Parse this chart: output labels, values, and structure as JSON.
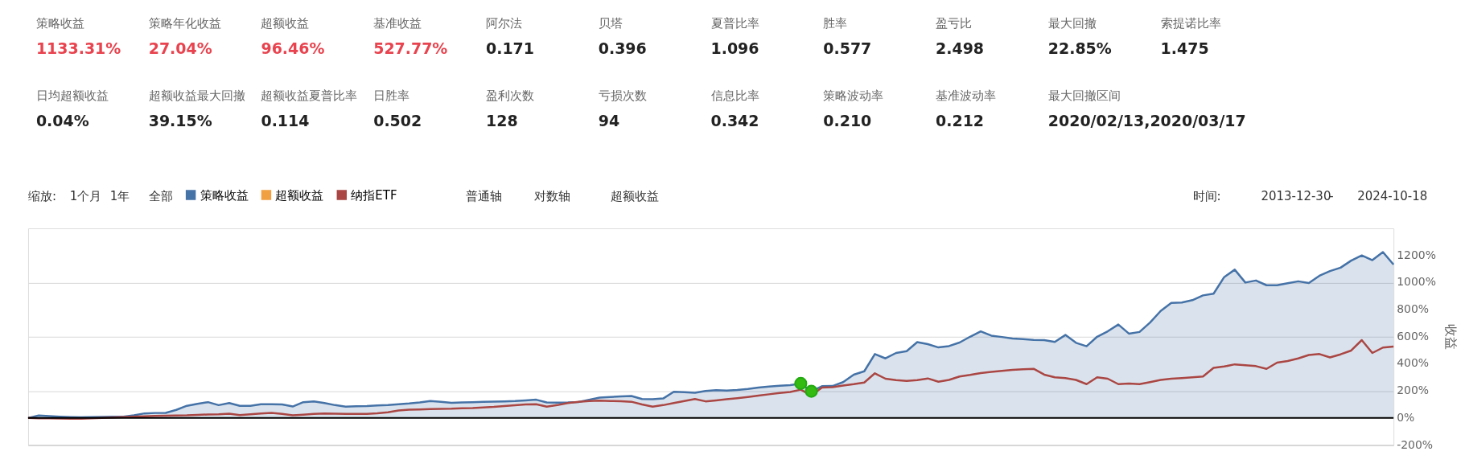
{
  "chart_data": [
    {
      "type": "other",
      "categories": [
        "策略收益",
        "策略年化收益",
        "超额收益",
        "基准收益",
        "阿尔法",
        "贝塔",
        "夏普比率",
        "胜率",
        "盈亏比",
        "最大回撤",
        "索提诺比率",
        "日均超额收益",
        "超额收益最大回撤",
        "超额收益夏普比率",
        "日胜率",
        "盈利次数",
        "亏损次数",
        "信息比率",
        "策略波动率",
        "基准波动率",
        "最大回撤区间"
      ],
      "value_labels": [
        "1133.31%",
        "27.04%",
        "96.46%",
        "527.77%",
        "0.171",
        "0.396",
        "1.096",
        "0.577",
        "2.498",
        "22.85%",
        "1.475",
        "0.04%",
        "39.15%",
        "0.114",
        "0.502",
        "128",
        "94",
        "0.342",
        "0.210",
        "0.212",
        "2020/02/13,2020/03/17"
      ],
      "colors": [
        "#e8434e",
        "#e8434e",
        "#e8434e",
        "#e8434e",
        "#222222",
        "#222222",
        "#222222",
        "#222222",
        "#222222",
        "#222222",
        "#222222",
        "#222222",
        "#222222",
        "#222222",
        "#222222",
        "#222222",
        "#222222",
        "#222222",
        "#222222",
        "#222222",
        "#222222"
      ]
    },
    {
      "type": "line",
      "ylabel": "收益",
      "annotations": [
        "缩放:",
        "1个月",
        "1年",
        "全部",
        "普通轴",
        "对数轴",
        "超额收益",
        "时间:",
        "2013-12-30",
        "-",
        "2024-10-18"
      ],
      "categories": [
        null,
        null,
        null,
        null,
        null,
        null,
        null,
        null,
        null,
        null,
        null,
        null,
        null,
        null,
        null,
        null,
        null,
        null,
        null,
        null,
        null,
        null,
        null,
        null,
        null,
        null,
        null,
        null,
        null,
        null,
        null,
        null,
        null,
        null,
        null,
        null,
        null,
        null,
        null,
        null,
        null,
        null,
        null,
        null,
        null,
        null,
        null,
        null,
        null,
        null,
        null,
        null,
        null,
        null,
        null,
        null,
        null,
        null,
        null,
        null,
        null,
        null,
        null,
        null,
        null,
        null,
        null,
        null,
        null,
        null,
        null,
        null,
        null,
        null,
        null,
        null,
        null,
        null,
        null,
        null,
        null,
        null,
        null,
        null,
        null,
        null,
        null,
        null,
        null,
        null,
        null,
        null,
        null,
        null,
        null,
        null,
        null,
        null,
        null,
        null,
        null,
        null,
        null,
        null,
        null,
        null,
        null,
        null,
        null,
        null,
        null,
        null,
        null,
        null,
        null,
        null,
        null,
        null,
        null,
        null,
        null,
        null,
        null,
        null,
        null,
        null,
        null,
        null,
        null,
        null
      ],
      "ylim": [
        -200,
        1400
      ],
      "yticks": [
        {
          "value": -200,
          "label": "-200%"
        },
        {
          "value": 0,
          "label": "0%"
        },
        {
          "value": 200,
          "label": "200%"
        },
        {
          "value": 400,
          "label": "400%"
        },
        {
          "value": 600,
          "label": "600%"
        },
        {
          "value": 800,
          "label": "800%"
        },
        {
          "value": 1000,
          "label": "1000%"
        },
        {
          "value": 1200,
          "label": "1200%"
        }
      ],
      "tick_labels": "y",
      "grid": "y",
      "legend": "top left",
      "ref_lines": [
        {
          "axis": "y",
          "value": 0,
          "color": "#000000"
        }
      ],
      "series": [
        {
          "name": "策略收益",
          "type": "area",
          "color": "#4572a7",
          "values": [
            0,
            18,
            14,
            10,
            7,
            5,
            6,
            8,
            9,
            10,
            20,
            34,
            37,
            38,
            60,
            90,
            105,
            117,
            95,
            110,
            90,
            90,
            102,
            102,
            100,
            85,
            117,
            122,
            110,
            95,
            84,
            86,
            88,
            92,
            96,
            102,
            107,
            115,
            125,
            120,
            112,
            115,
            117,
            119,
            121,
            123,
            125,
            130,
            135,
            115,
            114,
            115,
            118,
            135,
            150,
            155,
            160,
            162,
            140,
            138,
            144,
            194,
            190,
            186,
            200,
            205,
            203,
            207,
            215,
            225,
            232,
            238,
            243,
            255,
            197,
            235,
            236,
            265,
            320,
            345,
            472,
            440,
            480,
            493,
            560,
            545,
            521,
            531,
            557,
            600,
            640,
            608,
            598,
            587,
            582,
            577,
            575,
            562,
            613,
            555,
            530,
            600,
            640,
            690,
            623,
            635,
            705,
            790,
            850,
            852,
            870,
            905,
            918,
            1040,
            1095,
            1000,
            1015,
            980,
            980,
            995,
            1009,
            996,
            1050,
            1085,
            1110,
            1162,
            1200,
            1165,
            1225,
            1133
          ]
        },
        {
          "name": "超额收益",
          "type": "line",
          "color": "#f0a040",
          "values": [
            null,
            null,
            null,
            null,
            null,
            null,
            null,
            null,
            null,
            null,
            null,
            null,
            null,
            null,
            null,
            null,
            null,
            null,
            null,
            null,
            null,
            null,
            null,
            null,
            null,
            null,
            null,
            null,
            null,
            null,
            null,
            null,
            null,
            null,
            null,
            null,
            null,
            null,
            null,
            null,
            null,
            null,
            null,
            null,
            null,
            null,
            null,
            null,
            null,
            null,
            null,
            null,
            null,
            null,
            null,
            null,
            null,
            null,
            null,
            null,
            null,
            null,
            null,
            null,
            null,
            null,
            null,
            null,
            null,
            null,
            null,
            null,
            null,
            null,
            null,
            null,
            null,
            null,
            null,
            null,
            null,
            null,
            null,
            null,
            null,
            null,
            null,
            null,
            null,
            null,
            null,
            null,
            null,
            null,
            null,
            null,
            null,
            null,
            null,
            null,
            null,
            null,
            null,
            null,
            null,
            null,
            null,
            null,
            null,
            null,
            null,
            null,
            null,
            null,
            null,
            null,
            null,
            null,
            null,
            null,
            null,
            null,
            null,
            null,
            null,
            null,
            null,
            null,
            null,
            null
          ]
        },
        {
          "name": "纳指ETF",
          "type": "line",
          "color": "#aa4643",
          "values": [
            0,
            -2,
            -3,
            -4,
            -5,
            -5,
            -3,
            0,
            3,
            6,
            10,
            13,
            15,
            17,
            19,
            20,
            23,
            26,
            28,
            32,
            22,
            28,
            33,
            38,
            30,
            20,
            25,
            30,
            33,
            32,
            31,
            31,
            31,
            35,
            42,
            55,
            61,
            63,
            66,
            68,
            69,
            72,
            74,
            78,
            82,
            88,
            94,
            100,
            102,
            84,
            95,
            110,
            120,
            126,
            128,
            126,
            124,
            120,
            100,
            84,
            95,
            110,
            125,
            140,
            123,
            130,
            138,
            146,
            155,
            165,
            175,
            185,
            192,
            209,
            166,
            225,
            228,
            240,
            250,
            262,
            330,
            290,
            280,
            273,
            280,
            292,
            268,
            281,
            306,
            318,
            332,
            340,
            348,
            355,
            360,
            363,
            320,
            300,
            294,
            281,
            250,
            300,
            290,
            250,
            255,
            250,
            265,
            281,
            290,
            295,
            300,
            306,
            370,
            380,
            396,
            390,
            383,
            363,
            409,
            421,
            440,
            465,
            472,
            447,
            470,
            498,
            575,
            480,
            520,
            528
          ]
        },
        {
          "type": "scatter",
          "color": "#33bb11",
          "marker": "circle",
          "values": [
            null,
            null,
            null,
            null,
            null,
            null,
            null,
            null,
            null,
            null,
            null,
            null,
            null,
            null,
            null,
            null,
            null,
            null,
            null,
            null,
            null,
            null,
            null,
            null,
            null,
            null,
            null,
            null,
            null,
            null,
            null,
            null,
            null,
            null,
            null,
            null,
            null,
            null,
            null,
            null,
            null,
            null,
            null,
            null,
            null,
            null,
            null,
            null,
            null,
            null,
            null,
            null,
            null,
            null,
            null,
            null,
            null,
            null,
            null,
            null,
            null,
            null,
            null,
            null,
            null,
            null,
            null,
            null,
            null,
            null,
            null,
            null,
            null,
            255,
            197,
            null,
            null,
            null,
            null,
            null,
            null,
            null,
            null,
            null,
            null,
            null,
            null,
            null,
            null,
            null,
            null,
            null,
            null,
            null,
            null,
            null,
            null,
            null,
            null,
            null,
            null,
            null,
            null,
            null,
            null,
            null,
            null,
            null,
            null,
            null,
            null,
            null,
            null,
            null,
            null,
            null,
            null,
            null,
            null,
            null,
            null,
            null,
            null,
            null,
            null,
            null,
            null,
            null,
            null,
            null
          ]
        }
      ]
    }
  ]
}
